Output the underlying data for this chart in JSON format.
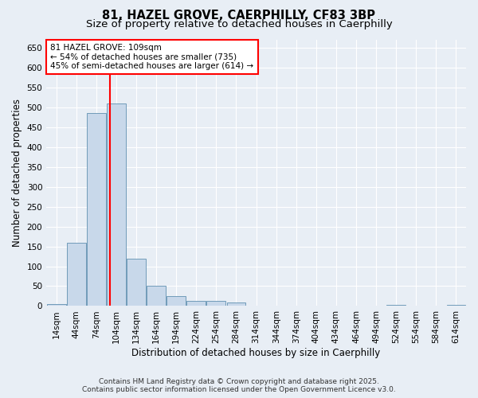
{
  "title_line1": "81, HAZEL GROVE, CAERPHILLY, CF83 3BP",
  "title_line2": "Size of property relative to detached houses in Caerphilly",
  "xlabel": "Distribution of detached houses by size in Caerphilly",
  "ylabel": "Number of detached properties",
  "bar_labels": [
    "14sqm",
    "44sqm",
    "74sqm",
    "104sqm",
    "134sqm",
    "164sqm",
    "194sqm",
    "224sqm",
    "254sqm",
    "284sqm",
    "314sqm",
    "344sqm",
    "374sqm",
    "404sqm",
    "434sqm",
    "464sqm",
    "494sqm",
    "524sqm",
    "554sqm",
    "584sqm",
    "614sqm"
  ],
  "bar_values": [
    5,
    160,
    485,
    510,
    120,
    50,
    25,
    13,
    12,
    8,
    0,
    0,
    0,
    0,
    0,
    0,
    0,
    3,
    0,
    0,
    3
  ],
  "bar_color": "#c8d8ea",
  "bar_edge_color": "#6090b0",
  "property_line_color": "red",
  "annotation_text": "81 HAZEL GROVE: 109sqm\n← 54% of detached houses are smaller (735)\n45% of semi-detached houses are larger (614) →",
  "annotation_box_color": "white",
  "annotation_box_edge_color": "red",
  "ylim": [
    0,
    670
  ],
  "yticks": [
    0,
    50,
    100,
    150,
    200,
    250,
    300,
    350,
    400,
    450,
    500,
    550,
    600,
    650
  ],
  "footer_text": "Contains HM Land Registry data © Crown copyright and database right 2025.\nContains public sector information licensed under the Open Government Licence v3.0.",
  "background_color": "#e8eef5",
  "plot_bg_color": "#e8eef5",
  "title_fontsize": 10.5,
  "subtitle_fontsize": 9.5,
  "axis_label_fontsize": 8.5,
  "tick_fontsize": 7.5,
  "footer_fontsize": 6.5,
  "annotation_fontsize": 7.5
}
